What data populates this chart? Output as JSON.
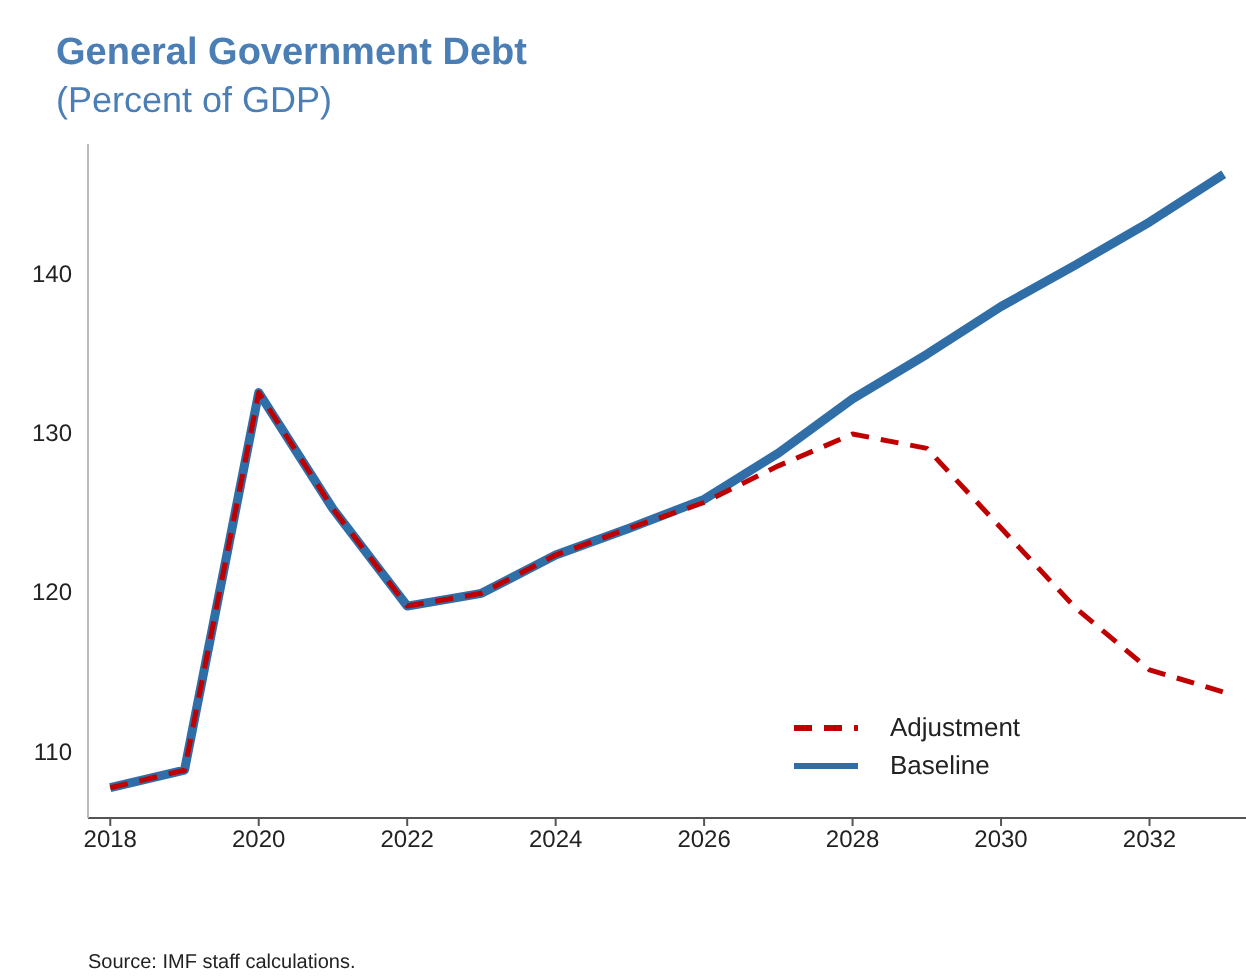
{
  "chart_data": {
    "type": "line",
    "title": "General Government Debt",
    "subtitle": "(Percent of GDP)",
    "annotations": [
      "Source: IMF staff calculations."
    ],
    "x": [
      2018,
      2019,
      2020,
      2021,
      2022,
      2023,
      2024,
      2025,
      2026,
      2027,
      2028,
      2029,
      2030,
      2031,
      2032,
      2033
    ],
    "series": [
      {
        "name": "Adjustment",
        "color": "#c00000",
        "line_style": "dashed",
        "values": [
          107.7,
          108.8,
          132.5,
          125.2,
          119.1,
          119.9,
          122.3,
          124,
          125.6,
          127.9,
          129.9,
          129,
          124,
          119,
          115.1,
          113.7
        ]
      },
      {
        "name": "Baseline",
        "color": "#2f6ea6",
        "line_style": "solid",
        "values": [
          107.7,
          108.8,
          132.5,
          125.2,
          119.1,
          119.9,
          122.3,
          124,
          125.8,
          128.7,
          132.1,
          134.9,
          137.9,
          140.5,
          143.2,
          146.2
        ]
      }
    ],
    "xlim": [
      2017.7,
      2033.3
    ],
    "xticks": [
      2018,
      2020,
      2022,
      2024,
      2026,
      2028,
      2030,
      2032
    ],
    "ylim": [
      105.8,
      148.1
    ],
    "yticks": [
      110,
      120,
      130,
      140
    ],
    "grid": false,
    "legend": "bottom right",
    "marker": "none"
  }
}
